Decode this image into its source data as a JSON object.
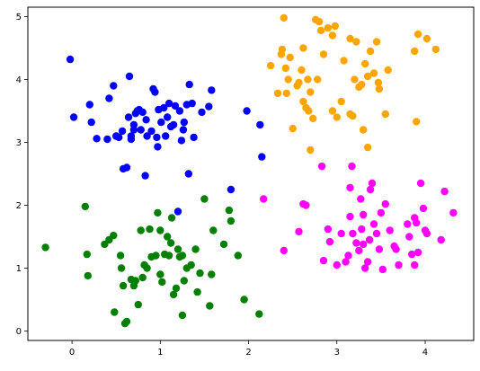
{
  "chart_data": {
    "type": "scatter",
    "title": "",
    "xlabel": "",
    "ylabel": "",
    "xlim": [
      -0.5,
      4.55
    ],
    "ylim": [
      -0.15,
      5.15
    ],
    "grid": false,
    "legend": "none",
    "x_ticks": [
      0,
      1,
      2,
      3,
      4
    ],
    "y_ticks": [
      0,
      1,
      2,
      3,
      4,
      5
    ],
    "x_tick_labels": [
      "0",
      "1",
      "2",
      "3",
      "4"
    ],
    "y_tick_labels": [
      "0",
      "1",
      "2",
      "3",
      "4",
      "5"
    ],
    "series": [
      {
        "color": "#0000ff",
        "points": [
          [
            -0.02,
            4.32
          ],
          [
            0.02,
            3.4
          ],
          [
            0.2,
            3.6
          ],
          [
            0.22,
            3.32
          ],
          [
            0.28,
            3.06
          ],
          [
            0.4,
            3.05
          ],
          [
            0.42,
            3.7
          ],
          [
            0.47,
            3.9
          ],
          [
            0.5,
            3.1
          ],
          [
            0.53,
            3.08
          ],
          [
            0.57,
            3.18
          ],
          [
            0.58,
            2.58
          ],
          [
            0.62,
            2.6
          ],
          [
            0.64,
            3.4
          ],
          [
            0.65,
            4.05
          ],
          [
            0.67,
            3.05
          ],
          [
            0.67,
            3.1
          ],
          [
            0.7,
            3.2
          ],
          [
            0.7,
            3.28
          ],
          [
            0.72,
            3.46
          ],
          [
            0.74,
            3.5
          ],
          [
            0.76,
            3.52
          ],
          [
            0.78,
            3.2
          ],
          [
            0.8,
            3.48
          ],
          [
            0.83,
            2.47
          ],
          [
            0.84,
            3.36
          ],
          [
            0.85,
            3.1
          ],
          [
            0.9,
            3.18
          ],
          [
            0.92,
            3.85
          ],
          [
            0.94,
            3.8
          ],
          [
            0.96,
            3.08
          ],
          [
            0.97,
            2.93
          ],
          [
            0.98,
            3.52
          ],
          [
            1.01,
            3.32
          ],
          [
            1.04,
            3.55
          ],
          [
            1.06,
            3.1
          ],
          [
            1.08,
            3.4
          ],
          [
            1.1,
            3.62
          ],
          [
            1.12,
            3.25
          ],
          [
            1.15,
            3.28
          ],
          [
            1.17,
            3.58
          ],
          [
            1.22,
            3.5
          ],
          [
            1.24,
            3.03
          ],
          [
            1.26,
            3.2
          ],
          [
            1.27,
            3.32
          ],
          [
            1.3,
            3.6
          ],
          [
            1.32,
            2.5
          ],
          [
            1.33,
            3.92
          ],
          [
            1.36,
            3.62
          ],
          [
            1.38,
            3.08
          ],
          [
            1.47,
            3.48
          ],
          [
            1.55,
            3.57
          ],
          [
            1.58,
            3.83
          ],
          [
            1.8,
            2.25
          ],
          [
            1.98,
            3.5
          ],
          [
            2.13,
            3.28
          ],
          [
            2.15,
            2.77
          ],
          [
            1.2,
            1.9
          ]
        ]
      },
      {
        "color": "#ffa500",
        "points": [
          [
            2.25,
            4.22
          ],
          [
            2.33,
            3.78
          ],
          [
            2.37,
            4.4
          ],
          [
            2.38,
            4.48
          ],
          [
            2.4,
            4.98
          ],
          [
            2.42,
            4.18
          ],
          [
            2.43,
            3.78
          ],
          [
            2.45,
            4.0
          ],
          [
            2.47,
            4.35
          ],
          [
            2.5,
            3.22
          ],
          [
            2.55,
            3.9
          ],
          [
            2.57,
            3.95
          ],
          [
            2.6,
            4.15
          ],
          [
            2.62,
            4.5
          ],
          [
            2.62,
            3.65
          ],
          [
            2.65,
            3.55
          ],
          [
            2.67,
            4.0
          ],
          [
            2.68,
            3.5
          ],
          [
            2.7,
            3.8
          ],
          [
            2.7,
            2.88
          ],
          [
            2.73,
            3.38
          ],
          [
            2.76,
            4.95
          ],
          [
            2.78,
            4.0
          ],
          [
            2.8,
            4.92
          ],
          [
            2.82,
            4.78
          ],
          [
            2.85,
            4.4
          ],
          [
            2.9,
            4.82
          ],
          [
            2.95,
            3.5
          ],
          [
            2.98,
            4.85
          ],
          [
            3.0,
            3.4
          ],
          [
            3.05,
            3.65
          ],
          [
            3.08,
            4.3
          ],
          [
            3.15,
            3.45
          ],
          [
            3.18,
            3.42
          ],
          [
            3.2,
            4.0
          ],
          [
            3.22,
            4.6
          ],
          [
            3.25,
            3.88
          ],
          [
            3.28,
            3.92
          ],
          [
            3.3,
            3.2
          ],
          [
            3.32,
            4.25
          ],
          [
            3.35,
            4.05
          ],
          [
            3.38,
            4.45
          ],
          [
            3.42,
            4.1
          ],
          [
            3.45,
            4.6
          ],
          [
            3.47,
            3.95
          ],
          [
            3.48,
            3.85
          ],
          [
            3.55,
            3.45
          ],
          [
            3.58,
            4.15
          ],
          [
            3.88,
            4.45
          ],
          [
            3.9,
            3.33
          ],
          [
            3.92,
            4.72
          ],
          [
            4.02,
            4.65
          ],
          [
            4.12,
            4.48
          ],
          [
            3.15,
            4.65
          ],
          [
            2.95,
            4.7
          ],
          [
            3.35,
            2.92
          ]
        ]
      },
      {
        "color": "#008000",
        "points": [
          [
            -0.3,
            1.33
          ],
          [
            0.15,
            1.98
          ],
          [
            0.17,
            1.22
          ],
          [
            0.18,
            0.88
          ],
          [
            0.37,
            1.38
          ],
          [
            0.42,
            1.45
          ],
          [
            0.47,
            1.52
          ],
          [
            0.48,
            0.3
          ],
          [
            0.55,
            1.2
          ],
          [
            0.56,
            1.0
          ],
          [
            0.58,
            0.72
          ],
          [
            0.6,
            0.12
          ],
          [
            0.62,
            0.15
          ],
          [
            0.67,
            0.82
          ],
          [
            0.72,
            0.8
          ],
          [
            0.75,
            0.42
          ],
          [
            0.78,
            1.6
          ],
          [
            0.8,
            0.85
          ],
          [
            0.82,
            1.05
          ],
          [
            0.85,
            1.0
          ],
          [
            0.9,
            1.18
          ],
          [
            0.95,
            1.2
          ],
          [
            0.97,
            1.88
          ],
          [
            1.0,
            0.9
          ],
          [
            1.02,
            0.78
          ],
          [
            1.05,
            1.22
          ],
          [
            1.08,
            1.5
          ],
          [
            1.1,
            1.2
          ],
          [
            1.12,
            1.4
          ],
          [
            1.13,
            1.8
          ],
          [
            1.15,
            0.58
          ],
          [
            1.18,
            0.68
          ],
          [
            1.2,
            1.3
          ],
          [
            1.22,
            1.18
          ],
          [
            1.25,
            0.25
          ],
          [
            1.27,
            0.8
          ],
          [
            1.3,
            1.0
          ],
          [
            1.35,
            1.05
          ],
          [
            1.42,
            0.62
          ],
          [
            1.45,
            0.92
          ],
          [
            1.5,
            2.1
          ],
          [
            1.56,
            0.4
          ],
          [
            1.58,
            0.9
          ],
          [
            1.6,
            1.6
          ],
          [
            1.72,
            1.38
          ],
          [
            1.78,
            1.92
          ],
          [
            1.8,
            1.75
          ],
          [
            1.88,
            1.2
          ],
          [
            1.95,
            0.5
          ],
          [
            2.12,
            0.27
          ],
          [
            1.0,
            1.6
          ],
          [
            1.25,
            1.2
          ],
          [
            0.88,
            1.62
          ],
          [
            0.7,
            0.72
          ],
          [
            1.4,
            1.3
          ]
        ]
      },
      {
        "color": "#ff00ff",
        "points": [
          [
            2.17,
            2.1
          ],
          [
            2.4,
            1.28
          ],
          [
            2.57,
            1.58
          ],
          [
            2.62,
            2.02
          ],
          [
            2.65,
            2.0
          ],
          [
            2.83,
            2.62
          ],
          [
            2.85,
            1.12
          ],
          [
            2.9,
            1.62
          ],
          [
            2.92,
            1.42
          ],
          [
            3.0,
            1.05
          ],
          [
            3.05,
            1.55
          ],
          [
            3.1,
            1.1
          ],
          [
            3.13,
            1.2
          ],
          [
            3.15,
            2.28
          ],
          [
            3.15,
            1.82
          ],
          [
            3.17,
            2.62
          ],
          [
            3.18,
            1.55
          ],
          [
            3.22,
            1.4
          ],
          [
            3.25,
            1.28
          ],
          [
            3.27,
            2.1
          ],
          [
            3.28,
            1.62
          ],
          [
            3.3,
            1.85
          ],
          [
            3.32,
            1.0
          ],
          [
            3.35,
            1.1
          ],
          [
            3.37,
            1.45
          ],
          [
            3.38,
            2.25
          ],
          [
            3.4,
            2.35
          ],
          [
            3.42,
            1.7
          ],
          [
            3.45,
            1.55
          ],
          [
            3.48,
            1.3
          ],
          [
            3.5,
            1.88
          ],
          [
            3.52,
            0.98
          ],
          [
            3.55,
            2.02
          ],
          [
            3.6,
            1.6
          ],
          [
            3.65,
            1.35
          ],
          [
            3.67,
            1.3
          ],
          [
            3.7,
            1.05
          ],
          [
            3.8,
            1.7
          ],
          [
            3.82,
            1.5
          ],
          [
            3.85,
            1.22
          ],
          [
            3.88,
            1.8
          ],
          [
            3.9,
            1.72
          ],
          [
            3.92,
            1.25
          ],
          [
            3.95,
            2.35
          ],
          [
            3.98,
            1.95
          ],
          [
            4.0,
            1.6
          ],
          [
            4.02,
            1.55
          ],
          [
            4.18,
            1.45
          ],
          [
            4.22,
            2.22
          ],
          [
            4.32,
            1.88
          ],
          [
            3.88,
            1.05
          ],
          [
            3.3,
            1.38
          ]
        ]
      }
    ]
  }
}
